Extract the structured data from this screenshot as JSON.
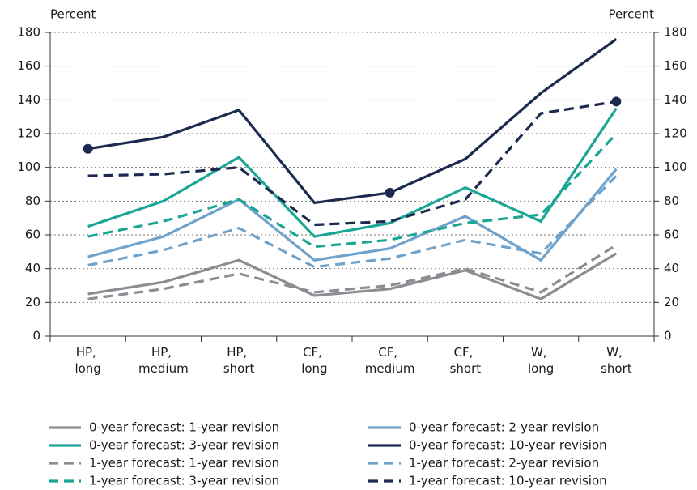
{
  "chart_data": {
    "type": "line",
    "y_label": "Percent",
    "y2_label": "Percent",
    "categories": [
      "HP, long",
      "HP, medium",
      "HP, short",
      "CF, long",
      "CF, medium",
      "CF, short",
      "W, long",
      "W, short"
    ],
    "series": [
      {
        "name": "0-year forecast: 1-year revision",
        "color": "#8c8d92",
        "dashed": false,
        "values": [
          25,
          32,
          45,
          24,
          28,
          39,
          22,
          49
        ]
      },
      {
        "name": "0-year forecast: 2-year revision",
        "color": "#6fa3cc",
        "dashed": false,
        "values": [
          47,
          59,
          81,
          45,
          52,
          71,
          45,
          99
        ]
      },
      {
        "name": "0-year forecast: 3-year revision",
        "color": "#1aa594",
        "dashed": false,
        "values": [
          65,
          80,
          106,
          59,
          67,
          88,
          68,
          135
        ]
      },
      {
        "name": "0-year forecast: 10-year revision",
        "color": "#1b2a4e",
        "dashed": false,
        "markers": [
          0,
          4
        ],
        "values": [
          111,
          118,
          134,
          79,
          85,
          105,
          144,
          176
        ]
      },
      {
        "name": "1-year forecast: 1-year revision",
        "color": "#8c8d92",
        "dashed": true,
        "values": [
          22,
          28,
          37,
          26,
          30,
          40,
          26,
          54
        ]
      },
      {
        "name": "1-year forecast: 2-year revision",
        "color": "#6fa3cc",
        "dashed": true,
        "values": [
          42,
          51,
          64,
          41,
          46,
          57,
          49,
          95
        ]
      },
      {
        "name": "1-year forecast: 3-year revision",
        "color": "#1aa594",
        "dashed": true,
        "values": [
          59,
          68,
          81,
          53,
          57,
          67,
          72,
          120
        ]
      },
      {
        "name": "1-year forecast: 10-year revision",
        "color": "#1b2a4e",
        "dashed": true,
        "markers": [
          7
        ],
        "values": [
          95,
          96,
          100,
          66,
          68,
          81,
          132,
          139
        ]
      }
    ],
    "ylim": [
      0,
      180
    ],
    "yticks": [
      0,
      20,
      40,
      60,
      80,
      100,
      120,
      140,
      160,
      180
    ],
    "y2lim": [
      0,
      180
    ],
    "y2ticks": [
      0,
      20,
      40,
      60,
      80,
      100,
      120,
      140,
      160,
      180
    ],
    "grid": true
  }
}
